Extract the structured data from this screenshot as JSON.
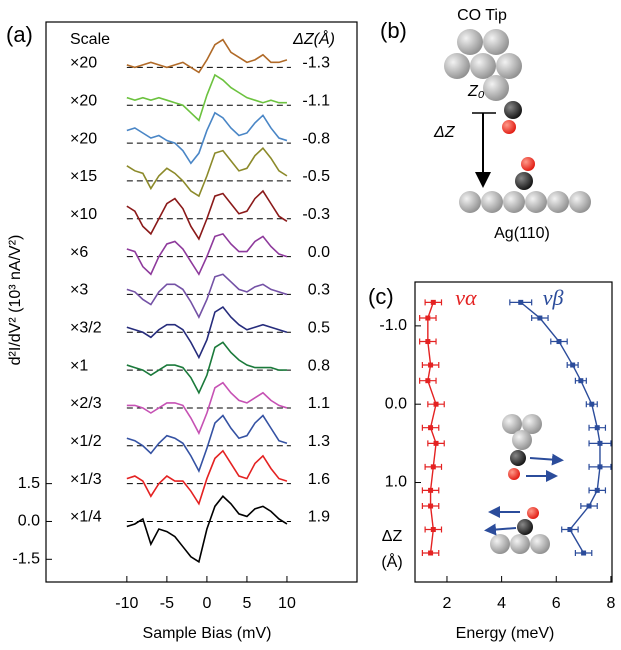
{
  "chart_data": [
    {
      "type": "waterfall",
      "panel": "(a)",
      "x_label": "Sample Bias (mV)",
      "y_label": "d²I/dV² (10³ nA/V²)",
      "scale_header": "Scale",
      "dz_header": "ΔZ(Å)",
      "xlim": [
        -20.1,
        18.75
      ],
      "ylim": [
        -2.4,
        19.8
      ],
      "xticks": [
        -10,
        -5,
        0,
        5,
        10
      ],
      "yticks": [
        1.5,
        {
          "value": 0,
          "label": "0.0"
        },
        -1.5
      ],
      "x": [
        -10,
        -9,
        -8,
        -7,
        -6,
        -5,
        -4,
        -3,
        -2,
        -1,
        0,
        1,
        2,
        3,
        4,
        5,
        6,
        7,
        8,
        9,
        10
      ],
      "baselines": [
        18,
        16.5,
        15,
        13.5,
        12,
        10.5,
        9,
        7.5,
        6,
        4.5,
        3,
        1.5,
        0
      ],
      "series": [
        {
          "scale": "×20",
          "dz": "-1.3",
          "color": "#b06a28",
          "values": [
            18.1,
            18.0,
            18.1,
            18.2,
            18.1,
            18.0,
            18.1,
            18.2,
            18.0,
            17.8,
            18.3,
            18.9,
            19.1,
            18.6,
            18.4,
            18.2,
            18.3,
            18.5,
            18.2,
            18.2,
            18.3
          ]
        },
        {
          "scale": "×20",
          "dz": "-1.1",
          "color": "#6cc23f",
          "values": [
            16.8,
            16.7,
            16.8,
            16.7,
            16.8,
            16.7,
            16.6,
            16.5,
            16.2,
            15.9,
            16.9,
            17.7,
            17.5,
            17.2,
            17.0,
            16.8,
            16.7,
            16.6,
            16.7,
            16.6,
            16.6
          ]
        },
        {
          "scale": "×20",
          "dz": "-0.8",
          "color": "#4a86c6",
          "values": [
            15.5,
            15.6,
            15.4,
            15.2,
            15.3,
            15.1,
            15.0,
            14.7,
            14.2,
            14.6,
            15.5,
            16.2,
            16.0,
            15.6,
            15.3,
            15.4,
            15.8,
            16.1,
            15.6,
            15.2,
            15.1
          ]
        },
        {
          "scale": "×15",
          "dz": "-0.5",
          "color": "#8c8a2a",
          "values": [
            14.1,
            13.9,
            13.8,
            13.2,
            13.7,
            14.0,
            13.8,
            13.5,
            13.1,
            12.9,
            13.7,
            14.6,
            14.7,
            14.3,
            13.9,
            14.0,
            14.5,
            14.8,
            14.4,
            13.9,
            13.7
          ]
        },
        {
          "scale": "×10",
          "dz": "-0.3",
          "color": "#8b1a1a",
          "values": [
            12.5,
            12.3,
            11.7,
            11.4,
            12.0,
            12.6,
            12.8,
            12.4,
            11.7,
            11.2,
            12.0,
            12.9,
            13.0,
            12.6,
            12.2,
            12.3,
            12.8,
            13.1,
            12.6,
            12.1,
            11.9
          ]
        },
        {
          "scale": "×6",
          "dz": "0.0",
          "color": "#8e3a9c",
          "values": [
            10.8,
            10.7,
            10.1,
            9.8,
            10.5,
            11.0,
            11.1,
            10.8,
            10.3,
            9.8,
            10.5,
            11.3,
            11.4,
            11.0,
            10.7,
            10.7,
            11.1,
            11.3,
            10.9,
            10.6,
            10.5
          ]
        },
        {
          "scale": "×3",
          "dz": "0.3",
          "color": "#7452a6",
          "values": [
            9.2,
            9.1,
            8.8,
            8.6,
            9.1,
            9.4,
            9.4,
            9.2,
            8.7,
            8.1,
            8.8,
            9.7,
            9.8,
            9.5,
            9.2,
            9.1,
            9.3,
            9.4,
            9.2,
            9.1,
            9.0
          ]
        },
        {
          "scale": "×3/2",
          "dz": "0.5",
          "color": "#262c7c",
          "values": [
            7.7,
            7.6,
            7.5,
            7.3,
            7.6,
            7.8,
            7.8,
            7.6,
            7.1,
            6.5,
            7.2,
            8.3,
            8.5,
            8.1,
            7.8,
            7.6,
            7.7,
            7.8,
            7.7,
            7.6,
            7.5
          ]
        },
        {
          "scale": "×1",
          "dz": "0.8",
          "color": "#1b7a3b",
          "values": [
            6.2,
            6.1,
            6.0,
            5.8,
            6.0,
            6.2,
            6.2,
            6.1,
            5.7,
            5.1,
            5.8,
            6.9,
            7.1,
            6.7,
            6.4,
            6.2,
            6.1,
            6.1,
            6.1,
            6.0,
            6.0
          ]
        },
        {
          "scale": "×2/3",
          "dz": "1.1",
          "color": "#c652b4",
          "values": [
            4.6,
            4.6,
            4.5,
            4.3,
            4.5,
            4.7,
            4.7,
            4.6,
            4.1,
            3.5,
            4.3,
            5.3,
            5.5,
            5.1,
            4.8,
            4.7,
            4.9,
            5.1,
            4.8,
            4.6,
            4.5
          ]
        },
        {
          "scale": "×1/2",
          "dz": "1.3",
          "color": "#3552a3",
          "values": [
            3.3,
            3.2,
            3.0,
            2.7,
            3.1,
            3.4,
            3.3,
            3.1,
            2.6,
            2.0,
            2.9,
            3.9,
            4.2,
            3.7,
            3.3,
            3.4,
            3.9,
            4.2,
            3.7,
            3.2,
            3.1
          ]
        },
        {
          "scale": "×1/3",
          "dz": "1.6",
          "color": "#e42222",
          "values": [
            1.7,
            1.8,
            1.6,
            1.0,
            1.5,
            1.8,
            1.6,
            1.6,
            1.2,
            0.7,
            1.7,
            2.5,
            2.8,
            2.3,
            1.8,
            1.7,
            2.3,
            2.6,
            2.1,
            1.7,
            1.6
          ]
        },
        {
          "scale": "×1/4",
          "dz": "1.9",
          "color": "#000000",
          "values": [
            -0.2,
            -0.1,
            0.1,
            -0.9,
            -0.3,
            -0.4,
            -0.6,
            -1.0,
            -1.4,
            -1.6,
            -0.3,
            0.6,
            1.0,
            0.7,
            0.3,
            0.2,
            0.5,
            0.6,
            0.4,
            0.1,
            -0.1
          ]
        }
      ]
    },
    {
      "type": "scatter-line",
      "panel": "(c)",
      "x_label": "Energy (meV)",
      "y_label_lines": [
        "ΔZ",
        "(Å)"
      ],
      "xlim": [
        0.83,
        8.04
      ],
      "ylim": [
        2.27,
        -1.56
      ],
      "xticks": [
        2,
        4,
        6,
        8
      ],
      "yticks": [
        {
          "value": -1,
          "label": "-1.0"
        },
        {
          "value": 0,
          "label": "0.0"
        },
        {
          "value": 1,
          "label": "1.0"
        }
      ],
      "y": [
        -1.3,
        -1.1,
        -0.8,
        -0.5,
        -0.3,
        0,
        0.3,
        0.5,
        0.8,
        1.1,
        1.3,
        1.6,
        1.9
      ],
      "series": [
        {
          "name": "να",
          "color": "#e42222",
          "values": [
            1.5,
            1.3,
            1.3,
            1.4,
            1.3,
            1.6,
            1.4,
            1.6,
            1.5,
            1.4,
            1.4,
            1.5,
            1.4
          ],
          "xerr": [
            0.3,
            0.3,
            0.3,
            0.3,
            0.3,
            0.3,
            0.3,
            0.3,
            0.3,
            0.3,
            0.3,
            0.3,
            0.3
          ]
        },
        {
          "name": "νβ",
          "color": "#2b4c9b",
          "values": [
            4.7,
            5.4,
            6.1,
            6.6,
            6.9,
            7.3,
            7.5,
            7.6,
            7.6,
            7.5,
            7.2,
            6.5,
            7.0
          ],
          "xerr": [
            0.4,
            0.3,
            0.3,
            0.2,
            0.2,
            0.2,
            0.3,
            0.4,
            0.4,
            0.3,
            0.3,
            0.3,
            0.3
          ]
        }
      ]
    }
  ],
  "diagram_b": {
    "panel": "(b)",
    "tip_label": "CO Tip",
    "z0_label": "Z₀",
    "dz_label": "ΔZ",
    "surface_label": "Ag(110)"
  }
}
